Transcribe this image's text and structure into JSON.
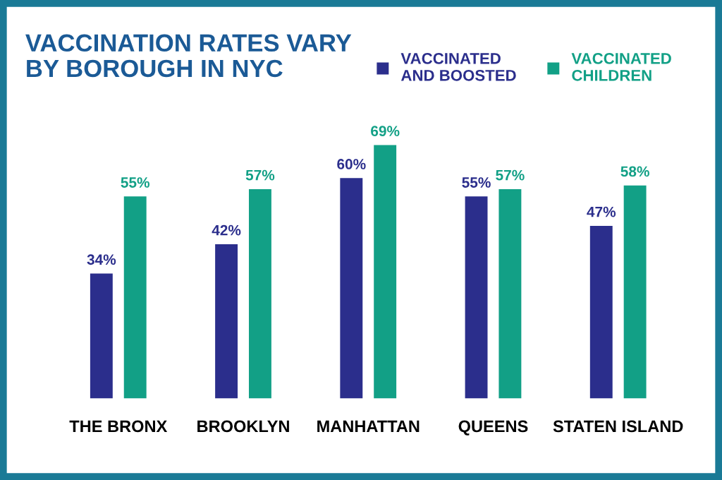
{
  "chart_data": {
    "type": "bar",
    "title": "VACCINATION RATES VARY\nBY BOROUGH IN NYC",
    "categories": [
      "THE BRONX",
      "BROOKLYN",
      "MANHATTAN",
      "QUEENS",
      "STATEN ISLAND"
    ],
    "series": [
      {
        "name": "VACCINATED\nAND BOOSTED",
        "color": "#2b2e8c",
        "values": [
          34,
          42,
          60,
          55,
          47
        ],
        "value_labels": [
          "34%",
          "42%",
          "60%",
          "55%",
          "47%"
        ]
      },
      {
        "name": "VACCINATED\nCHILDREN",
        "color": "#12a086",
        "values": [
          55,
          57,
          69,
          57,
          58
        ],
        "value_labels": [
          "55%",
          "57%",
          "69%",
          "57%",
          "58%"
        ]
      }
    ],
    "legend": "top right",
    "grid": false
  }
}
